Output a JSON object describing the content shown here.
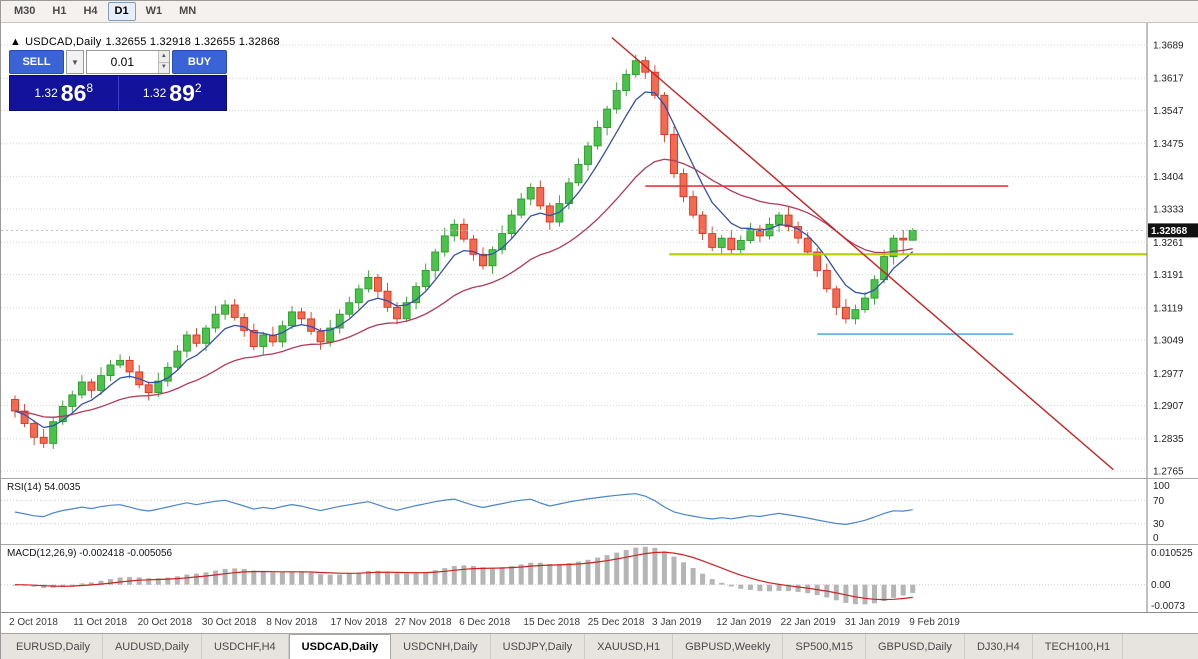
{
  "toolbar": {
    "timeframes": [
      "M30",
      "H1",
      "H4",
      "D1",
      "W1",
      "MN"
    ],
    "active_timeframe": "D1"
  },
  "symbol_header": {
    "arrow": "▲",
    "title": "USDCAD,Daily",
    "ohlc": "1.32655 1.32918 1.32655 1.32868"
  },
  "trade_panel": {
    "sell_label": "SELL",
    "buy_label": "BUY",
    "volume": "0.01",
    "bid": {
      "big": "1.32",
      "mid": "86",
      "sup": "8"
    },
    "ask": {
      "big": "1.32",
      "mid": "89",
      "sup": "2"
    }
  },
  "price_axis": {
    "ticks": [
      "1.3689",
      "1.3617",
      "1.3547",
      "1.3475",
      "1.3404",
      "1.3333",
      "1.3261",
      "1.3191",
      "1.3119",
      "1.3049",
      "1.2977",
      "1.2907",
      "1.2835",
      "1.2765"
    ],
    "current": "1.32868",
    "current_price": 1.32868
  },
  "rsi_panel": {
    "label": "RSI(14) 54.0035",
    "period": 14,
    "ticks": [
      {
        "v": 100,
        "label": "100"
      },
      {
        "v": 70,
        "label": "70"
      },
      {
        "v": 30,
        "label": "30"
      },
      {
        "v": 0,
        "label": "0"
      }
    ],
    "line_color": "#4a86c8"
  },
  "macd_panel": {
    "label": "MACD(12,26,9) -0.002418 -0.005056",
    "fast": 12,
    "slow": 26,
    "signal": 9,
    "ticks": [
      {
        "v": 0.010525,
        "label": "0.010525"
      },
      {
        "v": 0,
        "label": "0.00"
      },
      {
        "v": -0.0073,
        "label": "-0.0073"
      }
    ],
    "range": {
      "top": 0.010525,
      "bottom": -0.0073
    },
    "hist_color": "#b5b5b5",
    "signal_color": "#cc2222"
  },
  "date_axis": {
    "labels": [
      "2 Oct 2018",
      "11 Oct 2018",
      "20 Oct 2018",
      "30 Oct 2018",
      "8 Nov 2018",
      "17 Nov 2018",
      "27 Nov 2018",
      "6 Dec 2018",
      "15 Dec 2018",
      "25 Dec 2018",
      "3 Jan 2019",
      "12 Jan 2019",
      "22 Jan 2019",
      "31 Jan 2019",
      "9 Feb 2019"
    ]
  },
  "tabs": {
    "items": [
      "EURUSD,Daily",
      "AUDUSD,Daily",
      "USDCHF,H4",
      "USDCAD,Daily",
      "USDCNH,Daily",
      "USDJPY,Daily",
      "XAUUSD,H1",
      "GBPUSD,Weekly",
      "SP500,M15",
      "GBPUSD,Daily",
      "DJ30,H4",
      "TECH100,H1"
    ],
    "active": "USDCAD,Daily"
  },
  "ui_colors": {
    "buy_sell_button": "#3a63d6",
    "quote_panel": "#12129b",
    "price_badge": "#111111"
  },
  "chart_data": {
    "type": "candlestick",
    "symbol": "USDCAD",
    "timeframe": "Daily",
    "price_range": {
      "top": 1.3689,
      "bottom": 1.2765
    },
    "up_color": "#4cc24c",
    "up_border": "#2a9c2a",
    "down_color": "#f26a52",
    "down_border": "#d93420",
    "ma_fast": {
      "period": 6,
      "color": "#3450a8"
    },
    "ma_slow": {
      "period": 22,
      "color": "#b23a5a"
    },
    "trendline": {
      "from_index": 62.5,
      "from_price": 1.3705,
      "to_index": 115,
      "to_price": 1.2768,
      "color": "#cc2020"
    },
    "hlines": [
      {
        "price": 1.3383,
        "from_index": 66,
        "to_index": 104,
        "color": "#e03c3c",
        "width": 1.6
      },
      {
        "price": 1.3235,
        "from_index": 68.5,
        "to_index": 119,
        "color": "#b8cc00",
        "width": 2.2
      },
      {
        "price": 1.3062,
        "from_index": 84,
        "to_index": 104.5,
        "color": "#56b0e8",
        "width": 1.6
      }
    ],
    "candles": [
      [
        1.292,
        1.2929,
        1.2881,
        1.2895
      ],
      [
        1.2895,
        1.291,
        1.286,
        1.2868
      ],
      [
        1.2868,
        1.2875,
        1.2821,
        1.2838
      ],
      [
        1.2838,
        1.2856,
        1.2815,
        1.2825
      ],
      [
        1.2825,
        1.2883,
        1.2813,
        1.2872
      ],
      [
        1.2872,
        1.2918,
        1.2865,
        1.2905
      ],
      [
        1.2905,
        1.2939,
        1.2891,
        1.293
      ],
      [
        1.293,
        1.2973,
        1.2922,
        1.2958
      ],
      [
        1.2958,
        1.2965,
        1.2923,
        1.294
      ],
      [
        1.294,
        1.299,
        1.293,
        1.2972
      ],
      [
        1.2972,
        1.3006,
        1.296,
        1.2995
      ],
      [
        1.2995,
        1.3018,
        1.2988,
        1.3005
      ],
      [
        1.3005,
        1.3014,
        1.2966,
        1.298
      ],
      [
        1.298,
        1.2995,
        1.2944,
        1.2952
      ],
      [
        1.2952,
        1.2959,
        1.2918,
        1.2935
      ],
      [
        1.2935,
        1.2978,
        1.2925,
        1.296
      ],
      [
        1.296,
        1.3001,
        1.2948,
        1.299
      ],
      [
        1.299,
        1.3038,
        1.2983,
        1.3025
      ],
      [
        1.3025,
        1.3069,
        1.3011,
        1.306
      ],
      [
        1.306,
        1.3075,
        1.3034,
        1.3042
      ],
      [
        1.3042,
        1.3082,
        1.3025,
        1.3075
      ],
      [
        1.3075,
        1.3123,
        1.3065,
        1.3105
      ],
      [
        1.3105,
        1.3136,
        1.3093,
        1.3125
      ],
      [
        1.3125,
        1.3138,
        1.3091,
        1.3098
      ],
      [
        1.3098,
        1.3107,
        1.3056,
        1.307
      ],
      [
        1.307,
        1.3085,
        1.3027,
        1.3035
      ],
      [
        1.3035,
        1.3067,
        1.3018,
        1.306
      ],
      [
        1.306,
        1.3078,
        1.3035,
        1.3045
      ],
      [
        1.3045,
        1.3091,
        1.3033,
        1.308
      ],
      [
        1.308,
        1.3123,
        1.3073,
        1.311
      ],
      [
        1.311,
        1.3119,
        1.3081,
        1.3095
      ],
      [
        1.3095,
        1.311,
        1.306,
        1.3068
      ],
      [
        1.3068,
        1.3075,
        1.3028,
        1.3045
      ],
      [
        1.3045,
        1.3093,
        1.3035,
        1.3075
      ],
      [
        1.3075,
        1.3116,
        1.3063,
        1.3105
      ],
      [
        1.3105,
        1.3143,
        1.3098,
        1.313
      ],
      [
        1.313,
        1.3169,
        1.3116,
        1.316
      ],
      [
        1.316,
        1.32,
        1.3152,
        1.3185
      ],
      [
        1.3185,
        1.3192,
        1.3138,
        1.3155
      ],
      [
        1.3155,
        1.3173,
        1.311,
        1.312
      ],
      [
        1.312,
        1.3131,
        1.3083,
        1.3095
      ],
      [
        1.3095,
        1.3143,
        1.3088,
        1.313
      ],
      [
        1.313,
        1.3174,
        1.3116,
        1.3165
      ],
      [
        1.3165,
        1.3215,
        1.3157,
        1.32
      ],
      [
        1.32,
        1.3247,
        1.3183,
        1.324
      ],
      [
        1.324,
        1.3293,
        1.323,
        1.3275
      ],
      [
        1.3275,
        1.3311,
        1.3263,
        1.33
      ],
      [
        1.33,
        1.3313,
        1.3261,
        1.3268
      ],
      [
        1.3268,
        1.3277,
        1.3221,
        1.3235
      ],
      [
        1.3235,
        1.325,
        1.3202,
        1.321
      ],
      [
        1.321,
        1.3252,
        1.3193,
        1.3245
      ],
      [
        1.3245,
        1.3298,
        1.3235,
        1.328
      ],
      [
        1.328,
        1.3331,
        1.3268,
        1.332
      ],
      [
        1.332,
        1.3368,
        1.3313,
        1.3355
      ],
      [
        1.3355,
        1.3389,
        1.3341,
        1.338
      ],
      [
        1.338,
        1.3395,
        1.3332,
        1.334
      ],
      [
        1.334,
        1.3347,
        1.3288,
        1.3305
      ],
      [
        1.3305,
        1.3363,
        1.3295,
        1.3345
      ],
      [
        1.3345,
        1.3401,
        1.3333,
        1.339
      ],
      [
        1.339,
        1.3443,
        1.3383,
        1.343
      ],
      [
        1.343,
        1.3479,
        1.3416,
        1.347
      ],
      [
        1.347,
        1.3525,
        1.3462,
        1.351
      ],
      [
        1.351,
        1.3557,
        1.3493,
        1.355
      ],
      [
        1.355,
        1.3608,
        1.354,
        1.359
      ],
      [
        1.359,
        1.3636,
        1.3578,
        1.3625
      ],
      [
        1.3625,
        1.3668,
        1.3618,
        1.3655
      ],
      [
        1.3655,
        1.3664,
        1.3616,
        1.363
      ],
      [
        1.363,
        1.3645,
        1.3572,
        1.358
      ],
      [
        1.358,
        1.3587,
        1.3478,
        1.3495
      ],
      [
        1.3495,
        1.3513,
        1.34,
        1.341
      ],
      [
        1.341,
        1.3421,
        1.3348,
        1.336
      ],
      [
        1.336,
        1.3373,
        1.3313,
        1.332
      ],
      [
        1.332,
        1.3329,
        1.3266,
        1.328
      ],
      [
        1.328,
        1.3295,
        1.3242,
        1.325
      ],
      [
        1.325,
        1.3277,
        1.3233,
        1.327
      ],
      [
        1.327,
        1.3288,
        1.3235,
        1.3245
      ],
      [
        1.3245,
        1.3276,
        1.3233,
        1.3265
      ],
      [
        1.3265,
        1.3303,
        1.3258,
        1.329
      ],
      [
        1.329,
        1.3299,
        1.3261,
        1.3275
      ],
      [
        1.3275,
        1.3315,
        1.3267,
        1.33
      ],
      [
        1.33,
        1.3327,
        1.3283,
        1.332
      ],
      [
        1.332,
        1.3338,
        1.3285,
        1.3295
      ],
      [
        1.3295,
        1.3306,
        1.3258,
        1.327
      ],
      [
        1.327,
        1.3283,
        1.3233,
        1.324
      ],
      [
        1.324,
        1.3249,
        1.3186,
        1.32
      ],
      [
        1.32,
        1.3215,
        1.3152,
        1.316
      ],
      [
        1.316,
        1.3167,
        1.3103,
        1.312
      ],
      [
        1.312,
        1.3138,
        1.3085,
        1.3095
      ],
      [
        1.3095,
        1.3126,
        1.3083,
        1.3115
      ],
      [
        1.3115,
        1.3153,
        1.3108,
        1.314
      ],
      [
        1.314,
        1.3189,
        1.3126,
        1.318
      ],
      [
        1.318,
        1.3245,
        1.3172,
        1.323
      ],
      [
        1.323,
        1.3277,
        1.3213,
        1.327
      ],
      [
        1.327,
        1.3288,
        1.3235,
        1.3266
      ],
      [
        1.32655,
        1.32918,
        1.32655,
        1.32868
      ]
    ]
  }
}
